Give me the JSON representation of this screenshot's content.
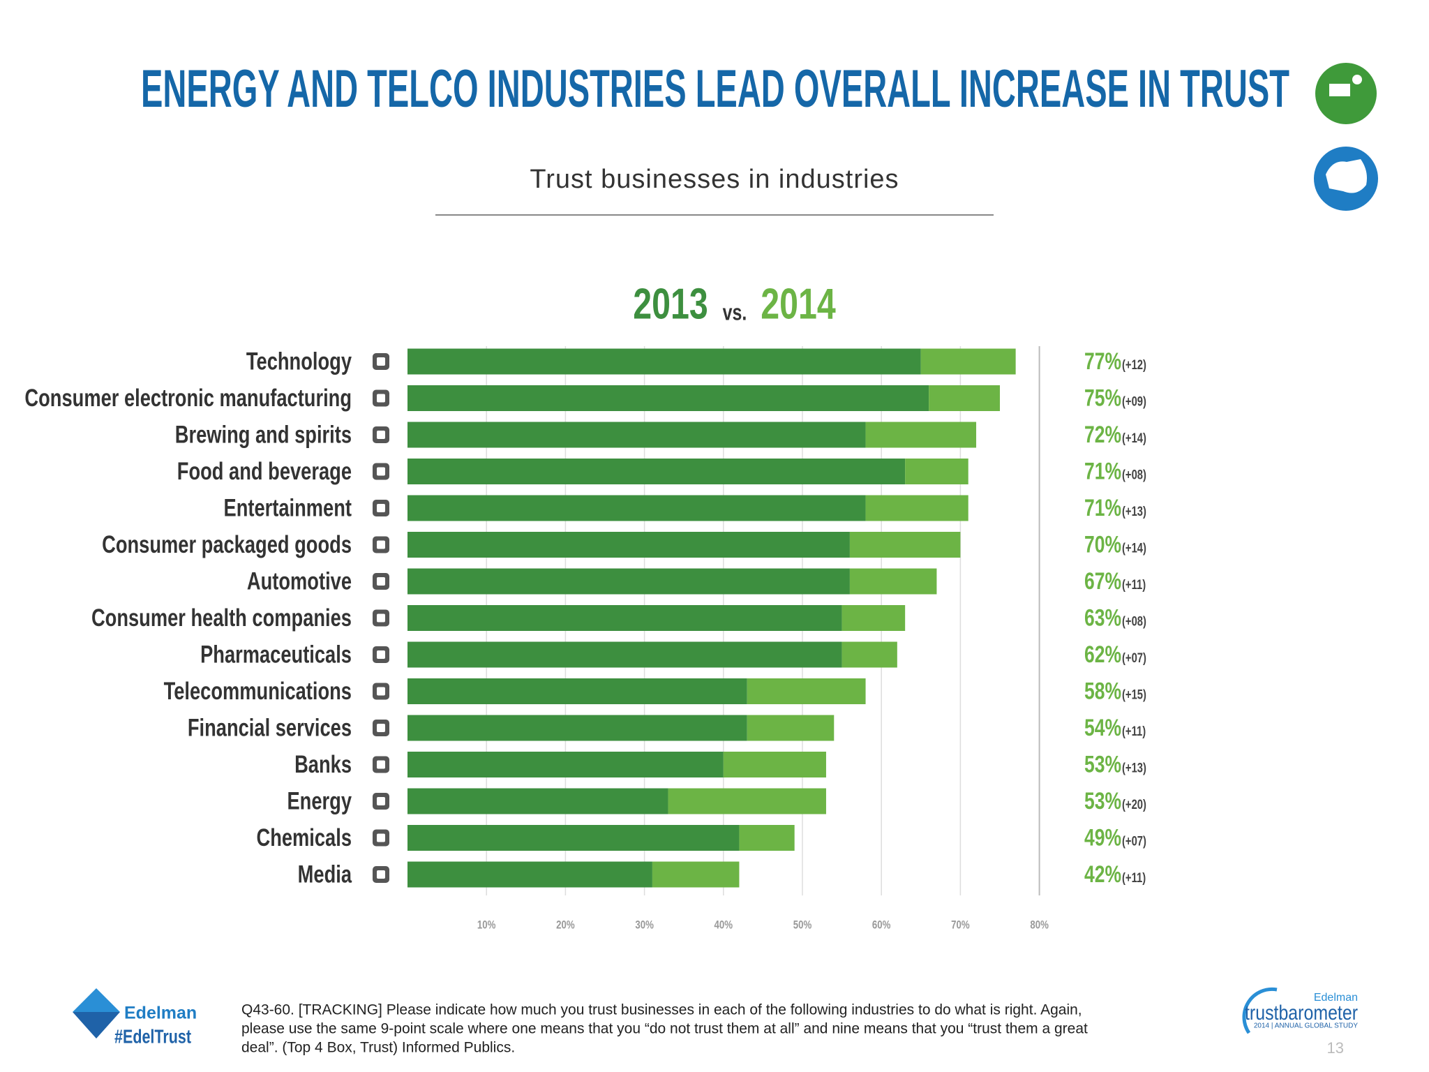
{
  "header": {
    "title": "ENERGY AND TELCO INDUSTRIES LEAD OVERALL INCREASE IN TRUST"
  },
  "chart_data": {
    "type": "bar",
    "orientation": "horizontal",
    "stacked": true,
    "subtitle": "Trust businesses in industries",
    "legend_separator": "vs.",
    "categories": [
      "Technology",
      "Consumer electronic manufacturing",
      "Brewing and spirits",
      "Food and beverage",
      "Entertainment",
      "Consumer packaged goods",
      "Automotive",
      "Consumer health companies",
      "Pharmaceuticals",
      "Telecommunications",
      "Financial services",
      "Banks",
      "Energy",
      "Chemicals",
      "Media"
    ],
    "series": [
      {
        "name": "2013",
        "color": "#3d8f3f",
        "values": [
          65,
          66,
          58,
          63,
          58,
          56,
          56,
          55,
          55,
          43,
          43,
          40,
          33,
          42,
          31
        ]
      },
      {
        "name": "2014",
        "color": "#6cb445",
        "values": [
          12,
          9,
          14,
          8,
          13,
          14,
          11,
          8,
          7,
          15,
          11,
          13,
          20,
          7,
          11
        ],
        "value_labels": [
          "(+12)",
          "(+09)",
          "(+14)",
          "(+08)",
          "(+13)",
          "(+14)",
          "(+11)",
          "(+08)",
          "(+07)",
          "(+15)",
          "(+11)",
          "(+13)",
          "(+20)",
          "(+07)",
          "(+11)"
        ]
      }
    ],
    "totals": {
      "values": [
        77,
        75,
        72,
        71,
        71,
        70,
        67,
        63,
        62,
        58,
        54,
        53,
        53,
        49,
        42
      ],
      "value_labels": [
        "77%",
        "75%",
        "72%",
        "71%",
        "71%",
        "70%",
        "67%",
        "63%",
        "62%",
        "58%",
        "54%",
        "53%",
        "53%",
        "49%",
        "42%"
      ]
    },
    "xlim": [
      0,
      80
    ],
    "xticks": [
      {
        "value": 10,
        "label": "10%"
      },
      {
        "value": 20,
        "label": "20%"
      },
      {
        "value": 30,
        "label": "30%"
      },
      {
        "value": 40,
        "label": "40%"
      },
      {
        "value": 50,
        "label": "50%"
      },
      {
        "value": 60,
        "label": "60%"
      },
      {
        "value": 70,
        "label": "70%"
      },
      {
        "value": 80,
        "label": "80%"
      }
    ],
    "grid": true
  },
  "footer": {
    "note": [
      "Q43-60. [TRACKING] Please indicate how much you trust businesses in each of the following industries to do what is right.  Again,",
      "please use the same 9-point scale where one means that you “do not trust them at all” and nine means that you “trust them a great",
      "deal”. (Top 4 Box, Trust) Informed Publics."
    ],
    "brand": "Edelman",
    "hashtag": "#EdelTrust",
    "study_brand": "Edelman",
    "study": "trustbarometer",
    "study_sub": "2014 | ANNUAL GLOBAL STUDY",
    "page": "13"
  }
}
